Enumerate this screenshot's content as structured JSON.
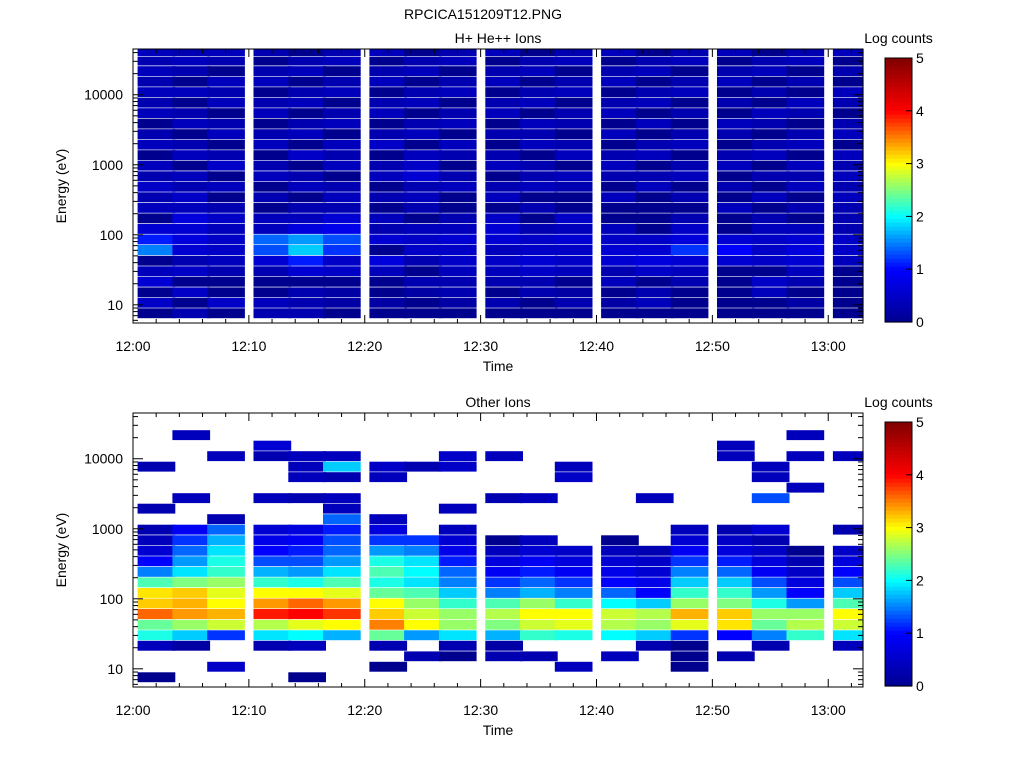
{
  "figure_title": "RPCICA151209T12.PNG",
  "colors": {
    "missing": "#ffffff",
    "colormap": [
      "#00008f",
      "#0000ff",
      "#00ffff",
      "#ffff00",
      "#ff0000",
      "#800000"
    ]
  },
  "chart_data": [
    {
      "type": "heatmap",
      "title": "H+ He++ Ions",
      "xlabel": "Time",
      "ylabel": "Energy (eV)",
      "colorbar_label": "Log counts",
      "x_ticks": [
        "12:00",
        "12:10",
        "12:20",
        "12:30",
        "12:40",
        "12:50",
        "13:00"
      ],
      "x_range": [
        "12:00",
        "13:03"
      ],
      "y_ticks": [
        "10",
        "100",
        "1000",
        "10000"
      ],
      "y_range": [
        5.5,
        45000
      ],
      "y_scale": "log",
      "color_range": [
        0,
        5
      ],
      "colorbar_ticks": [
        "0",
        "1",
        "2",
        "3",
        "4",
        "5"
      ],
      "time_bins": [
        "12:02",
        "12:05",
        "12:08",
        "12:12",
        "12:15",
        "12:18",
        "12:22",
        "12:25",
        "12:28",
        "12:32",
        "12:35",
        "12:38",
        "12:42",
        "12:45",
        "12:48",
        "12:52",
        "12:55",
        "12:58",
        "13:02"
      ],
      "energy_bins": [
        7.5,
        10.6,
        15,
        21,
        30,
        42,
        60,
        85,
        120,
        170,
        240,
        340,
        480,
        680,
        960,
        1360,
        1920,
        2710,
        3830,
        5410,
        7640,
        10800,
        15250,
        21540,
        30420,
        40000
      ],
      "values": [
        [
          0.0,
          0.3,
          0.0,
          0.3,
          0.3,
          0.0,
          0.0,
          0.0,
          0.0,
          0.0,
          0.0,
          0.0,
          0.0,
          0.0,
          0.0,
          0.0,
          0.0,
          0.0,
          0.0
        ],
        [
          0.5,
          0.0,
          0.5,
          0.4,
          0.3,
          0.2,
          0.2,
          0.0,
          0.2,
          0.3,
          0.0,
          0.3,
          0.2,
          0.4,
          0.0,
          0.0,
          0.0,
          0.2,
          0.0
        ],
        [
          0.0,
          0.5,
          0.0,
          0.0,
          0.3,
          0.2,
          0.0,
          0.2,
          0.3,
          0.0,
          0.3,
          0.2,
          0.0,
          0.3,
          0.0,
          0.0,
          0.4,
          0.0,
          0.0
        ],
        [
          0.6,
          0.0,
          0.0,
          0.0,
          0.0,
          0.0,
          0.0,
          0.3,
          0.3,
          0.3,
          0.3,
          0.0,
          0.4,
          0.0,
          0.3,
          0.0,
          0.5,
          0.3,
          0.0
        ],
        [
          0.4,
          0.5,
          0.3,
          0.3,
          0.6,
          0.5,
          0.4,
          0.0,
          0.4,
          0.4,
          0.5,
          0.4,
          0.3,
          0.5,
          0.4,
          0.0,
          0.0,
          0.4,
          0.0
        ],
        [
          0.0,
          0.3,
          0.4,
          0.6,
          1.1,
          0.5,
          0.7,
          0.3,
          0.5,
          0.5,
          0.6,
          0.5,
          0.6,
          0.7,
          0.6,
          0.6,
          0.5,
          0.6,
          0.4
        ],
        [
          1.5,
          0.6,
          0.5,
          1.3,
          1.8,
          1.2,
          0.0,
          0.5,
          0.5,
          0.4,
          0.5,
          0.5,
          0.6,
          0.6,
          1.2,
          1.0,
          0.5,
          0.7,
          0.5
        ],
        [
          1.1,
          0.7,
          0.5,
          1.4,
          1.6,
          1.3,
          0.6,
          0.5,
          0.6,
          0.6,
          0.5,
          0.6,
          0.5,
          0.5,
          0.7,
          0.6,
          0.5,
          0.6,
          0.5
        ],
        [
          0.6,
          0.6,
          0.4,
          0.4,
          0.7,
          0.8,
          0.3,
          0.4,
          0.4,
          0.6,
          0.3,
          0.4,
          0.4,
          0.0,
          0.5,
          0.0,
          0.4,
          0.4,
          0.3
        ],
        [
          0.0,
          0.7,
          0.5,
          0.4,
          0.4,
          0.6,
          0.4,
          0.0,
          0.3,
          0.5,
          0.0,
          0.5,
          0.0,
          0.0,
          0.3,
          0.0,
          0.3,
          0.0,
          0.3
        ],
        [
          0.4,
          0.4,
          0.3,
          0.0,
          0.3,
          0.3,
          0.0,
          0.3,
          0.0,
          0.0,
          0.3,
          0.0,
          0.0,
          0.0,
          0.0,
          0.4,
          0.0,
          0.3,
          0.3
        ],
        [
          0.3,
          0.5,
          0.0,
          0.3,
          0.0,
          0.4,
          0.3,
          0.4,
          0.0,
          0.4,
          0.0,
          0.0,
          0.4,
          0.0,
          0.3,
          0.0,
          0.4,
          0.0,
          0.4
        ],
        [
          0.5,
          0.3,
          0.4,
          0.0,
          0.4,
          0.3,
          0.0,
          0.3,
          0.4,
          0.3,
          0.4,
          0.3,
          0.0,
          0.4,
          0.0,
          0.3,
          0.0,
          0.4,
          0.3
        ],
        [
          0.3,
          0.4,
          0.0,
          0.4,
          0.3,
          0.0,
          0.4,
          0.6,
          0.3,
          0.0,
          0.3,
          0.4,
          0.3,
          0.3,
          0.4,
          0.0,
          0.3,
          0.3,
          0.4
        ],
        [
          0.4,
          0.0,
          0.5,
          0.3,
          0.0,
          0.4,
          0.3,
          0.5,
          0.0,
          0.4,
          0.3,
          0.0,
          0.4,
          0.0,
          0.3,
          0.4,
          0.0,
          0.4,
          0.3
        ],
        [
          0.0,
          0.4,
          0.3,
          0.0,
          0.5,
          0.3,
          0.0,
          0.4,
          0.3,
          0.3,
          0.0,
          0.4,
          0.3,
          0.4,
          0.0,
          0.3,
          0.4,
          0.0,
          0.4
        ],
        [
          0.4,
          0.3,
          0.0,
          0.4,
          0.0,
          0.4,
          0.5,
          0.0,
          0.4,
          0.0,
          0.4,
          0.3,
          0.0,
          0.3,
          0.4,
          0.0,
          0.3,
          0.4,
          0.0
        ],
        [
          0.3,
          0.0,
          0.4,
          0.3,
          0.4,
          0.0,
          0.3,
          0.4,
          0.0,
          0.3,
          0.3,
          0.0,
          0.4,
          0.0,
          0.3,
          0.3,
          0.0,
          0.3,
          0.4
        ],
        [
          0.0,
          0.4,
          0.3,
          0.0,
          0.3,
          0.4,
          0.0,
          0.3,
          0.4,
          0.0,
          0.4,
          0.3,
          0.0,
          0.4,
          0.0,
          0.4,
          0.3,
          0.0,
          0.3
        ],
        [
          0.4,
          0.3,
          0.0,
          0.4,
          0.0,
          0.3,
          0.4,
          0.0,
          0.3,
          0.4,
          0.0,
          0.3,
          0.4,
          0.0,
          0.3,
          0.0,
          0.4,
          0.3,
          0.0
        ],
        [
          0.3,
          0.0,
          0.4,
          0.3,
          0.4,
          0.0,
          0.3,
          0.4,
          0.0,
          0.3,
          0.4,
          0.0,
          0.3,
          0.4,
          0.0,
          0.3,
          0.0,
          0.4,
          0.3
        ],
        [
          0.4,
          0.4,
          0.3,
          0.0,
          0.3,
          0.4,
          0.0,
          0.3,
          0.4,
          0.0,
          0.3,
          0.4,
          0.0,
          0.3,
          0.4,
          0.0,
          0.3,
          0.0,
          0.4
        ],
        [
          0.3,
          0.0,
          0.4,
          0.4,
          0.0,
          0.3,
          0.4,
          0.0,
          0.3,
          0.4,
          0.0,
          0.3,
          0.4,
          0.0,
          0.3,
          0.4,
          0.0,
          0.3,
          0.0
        ],
        [
          0.4,
          0.3,
          0.0,
          0.3,
          0.4,
          0.0,
          0.3,
          0.4,
          0.0,
          0.3,
          0.4,
          0.0,
          0.3,
          0.4,
          0.0,
          0.3,
          0.4,
          0.0,
          0.3
        ],
        [
          0.3,
          0.4,
          0.3,
          0.0,
          0.3,
          0.4,
          0.0,
          0.3,
          0.4,
          0.0,
          0.3,
          0.4,
          0.0,
          0.3,
          0.4,
          0.0,
          0.3,
          0.4,
          0.0
        ],
        [
          0.4,
          0.3,
          0.4,
          0.3,
          0.0,
          0.3,
          0.4,
          0.0,
          0.3,
          0.4,
          0.0,
          0.3,
          0.4,
          0.0,
          0.3,
          0.4,
          0.0,
          0.3,
          0.4
        ]
      ]
    },
    {
      "type": "heatmap",
      "title": "Other Ions",
      "xlabel": "Time",
      "ylabel": "Energy (eV)",
      "colorbar_label": "Log counts",
      "x_ticks": [
        "12:00",
        "12:10",
        "12:20",
        "12:30",
        "12:40",
        "12:50",
        "13:00"
      ],
      "x_range": [
        "12:00",
        "13:03"
      ],
      "y_ticks": [
        "10",
        "100",
        "1000",
        "10000"
      ],
      "y_range": [
        5.5,
        45000
      ],
      "y_scale": "log",
      "color_range": [
        0,
        5
      ],
      "colorbar_ticks": [
        "0",
        "1",
        "2",
        "3",
        "4",
        "5"
      ],
      "time_bins": [
        "12:02",
        "12:05",
        "12:08",
        "12:12",
        "12:15",
        "12:18",
        "12:22",
        "12:25",
        "12:28",
        "12:32",
        "12:35",
        "12:38",
        "12:42",
        "12:45",
        "12:48",
        "12:52",
        "12:55",
        "12:58",
        "13:02"
      ],
      "energy_bins": [
        7.5,
        10.6,
        15,
        21,
        30,
        42,
        60,
        85,
        120,
        170,
        240,
        340,
        480,
        680,
        960,
        1360,
        1920,
        2710,
        3830,
        5410,
        7640,
        10800,
        15250,
        21540,
        30420,
        40000
      ],
      "values": [
        [
          0.0,
          null,
          null,
          null,
          0.0,
          null,
          null,
          null,
          null,
          null,
          null,
          null,
          null,
          null,
          null,
          null,
          null,
          null,
          null
        ],
        [
          null,
          null,
          0.5,
          null,
          null,
          null,
          0.0,
          null,
          null,
          null,
          null,
          0.4,
          null,
          null,
          0.0,
          null,
          null,
          null,
          null
        ],
        [
          null,
          null,
          null,
          null,
          null,
          null,
          null,
          0.3,
          0.0,
          0.3,
          0.3,
          null,
          0.4,
          null,
          0.0,
          0.3,
          null,
          null,
          null
        ],
        [
          0.4,
          0.2,
          null,
          0.3,
          0.4,
          null,
          0.3,
          null,
          0.3,
          0.2,
          null,
          null,
          null,
          0.3,
          0.0,
          null,
          0.3,
          null,
          0.4
        ],
        [
          2.1,
          1.8,
          1.2,
          1.9,
          2.0,
          1.7,
          2.4,
          1.6,
          1.9,
          1.7,
          2.2,
          2.1,
          2.0,
          1.8,
          1.2,
          1.0,
          1.5,
          2.2,
          1.9
        ],
        [
          2.4,
          2.6,
          2.8,
          2.7,
          2.9,
          3.0,
          3.5,
          3.0,
          2.6,
          2.5,
          2.8,
          2.9,
          2.7,
          2.6,
          2.9,
          3.1,
          2.4,
          2.7,
          2.8
        ],
        [
          3.6,
          3.4,
          3.3,
          3.9,
          4.0,
          3.8,
          3.2,
          2.8,
          2.6,
          2.7,
          3.0,
          3.0,
          2.8,
          2.7,
          3.3,
          3.2,
          2.6,
          2.6,
          3.0
        ],
        [
          3.2,
          3.3,
          3.0,
          3.4,
          3.6,
          3.4,
          3.0,
          2.6,
          2.2,
          2.3,
          2.6,
          2.2,
          2.0,
          1.8,
          2.6,
          2.5,
          2.1,
          1.6,
          2.3
        ],
        [
          3.1,
          3.2,
          2.9,
          3.0,
          3.0,
          2.9,
          2.4,
          2.3,
          1.8,
          1.5,
          1.7,
          1.5,
          1.4,
          1.0,
          2.2,
          2.2,
          1.6,
          1.0,
          1.8
        ],
        [
          2.3,
          2.5,
          2.6,
          2.2,
          2.1,
          2.3,
          2.1,
          1.9,
          1.5,
          1.2,
          1.4,
          1.2,
          1.0,
          0.8,
          1.8,
          1.8,
          1.3,
          0.7,
          1.3
        ],
        [
          1.5,
          1.9,
          2.2,
          1.7,
          1.6,
          1.9,
          2.3,
          2.0,
          1.4,
          0.9,
          1.1,
          0.9,
          0.8,
          0.6,
          1.5,
          1.4,
          0.9,
          0.5,
          1.0
        ],
        [
          1.0,
          1.6,
          2.1,
          1.3,
          1.3,
          1.6,
          2.1,
          1.9,
          1.1,
          0.7,
          0.9,
          0.7,
          0.6,
          0.5,
          1.2,
          1.1,
          0.7,
          0.3,
          0.7
        ],
        [
          0.6,
          1.4,
          1.9,
          1.0,
          1.1,
          1.4,
          1.6,
          1.5,
          0.8,
          0.4,
          0.6,
          0.5,
          0.4,
          0.3,
          0.9,
          0.7,
          0.5,
          0.0,
          0.5
        ],
        [
          0.4,
          1.2,
          1.7,
          0.8,
          0.9,
          1.3,
          1.2,
          1.2,
          0.6,
          0.0,
          0.4,
          null,
          0.0,
          null,
          0.6,
          0.5,
          0.3,
          null,
          null
        ],
        [
          0.3,
          0.9,
          1.4,
          0.6,
          0.7,
          1.1,
          0.7,
          null,
          0.4,
          null,
          null,
          null,
          null,
          null,
          0.4,
          0.3,
          0.6,
          null,
          0.3
        ],
        [
          null,
          null,
          0.3,
          null,
          null,
          1.4,
          0.4,
          null,
          null,
          null,
          null,
          null,
          null,
          null,
          null,
          null,
          null,
          null,
          null
        ],
        [
          0.3,
          null,
          null,
          null,
          null,
          0.4,
          null,
          null,
          0.4,
          null,
          null,
          null,
          null,
          null,
          null,
          null,
          null,
          null,
          null
        ],
        [
          null,
          0.4,
          null,
          0.4,
          0.3,
          0.4,
          null,
          null,
          null,
          0.3,
          0.4,
          null,
          null,
          0.4,
          null,
          null,
          1.3,
          null,
          null
        ],
        [
          null,
          null,
          null,
          null,
          null,
          null,
          null,
          null,
          null,
          null,
          null,
          null,
          null,
          null,
          null,
          null,
          null,
          0.4,
          null
        ],
        [
          null,
          null,
          null,
          null,
          0.4,
          0.3,
          0.4,
          null,
          null,
          null,
          null,
          0.5,
          null,
          null,
          null,
          null,
          0.4,
          null,
          null
        ],
        [
          0.3,
          null,
          null,
          null,
          0.4,
          1.8,
          0.5,
          0.3,
          0.5,
          null,
          null,
          0.4,
          null,
          null,
          null,
          null,
          0.4,
          null,
          null
        ],
        [
          null,
          null,
          0.4,
          0.3,
          0.4,
          0.4,
          null,
          null,
          0.5,
          0.4,
          null,
          null,
          null,
          null,
          null,
          0.4,
          null,
          0.4,
          0.4
        ],
        [
          null,
          null,
          null,
          0.6,
          null,
          null,
          null,
          null,
          null,
          null,
          null,
          null,
          null,
          null,
          null,
          0.4,
          null,
          null,
          null
        ],
        [
          null,
          0.4,
          null,
          null,
          null,
          null,
          null,
          null,
          null,
          null,
          null,
          null,
          null,
          null,
          null,
          null,
          null,
          0.4,
          null
        ],
        [
          null,
          null,
          null,
          null,
          null,
          null,
          null,
          null,
          null,
          null,
          null,
          null,
          null,
          null,
          null,
          null,
          null,
          null,
          null
        ],
        [
          null,
          null,
          null,
          null,
          null,
          null,
          null,
          null,
          null,
          null,
          null,
          null,
          null,
          null,
          null,
          null,
          null,
          null,
          null
        ]
      ]
    }
  ]
}
